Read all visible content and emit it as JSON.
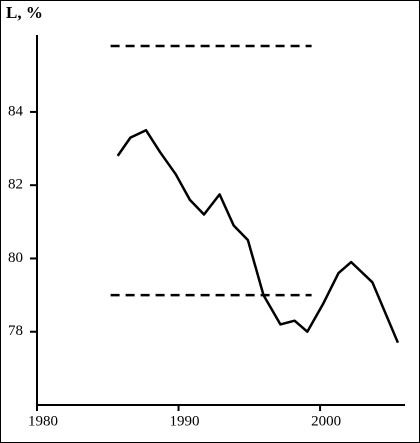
{
  "chart_data": {
    "type": "line",
    "ylabel": "L, %",
    "xlim": [
      1980,
      2006
    ],
    "xticks": [
      1980,
      1990,
      2000
    ],
    "ylim": [
      76,
      86.1
    ],
    "yticks": [
      78,
      80,
      82,
      84
    ],
    "series": [
      {
        "color": "#000000",
        "dashed": false,
        "x": [
          1985.7,
          1986.6,
          1987.7,
          1988.7,
          1989.8,
          1990.8,
          1991.8,
          1992.9,
          1993.9,
          1994.9,
          1996.0,
          1997.2,
          1998.2,
          1999.1,
          2000.2,
          2001.3,
          2002.2,
          2003.7,
          2005.5
        ],
        "values": [
          82.8,
          83.3,
          83.5,
          82.9,
          82.3,
          81.6,
          81.2,
          81.75,
          80.9,
          80.5,
          79.0,
          78.2,
          78.3,
          78.0,
          78.75,
          79.6,
          79.9,
          79.35,
          77.7
        ]
      },
      {
        "color": "#000000",
        "dashed": true,
        "x": [
          1985.2,
          1999.4
        ],
        "values": [
          85.8,
          85.8
        ]
      },
      {
        "color": "#000000",
        "dashed": true,
        "x": [
          1985.2,
          1999.4
        ],
        "values": [
          79.0,
          79.0
        ]
      }
    ]
  }
}
